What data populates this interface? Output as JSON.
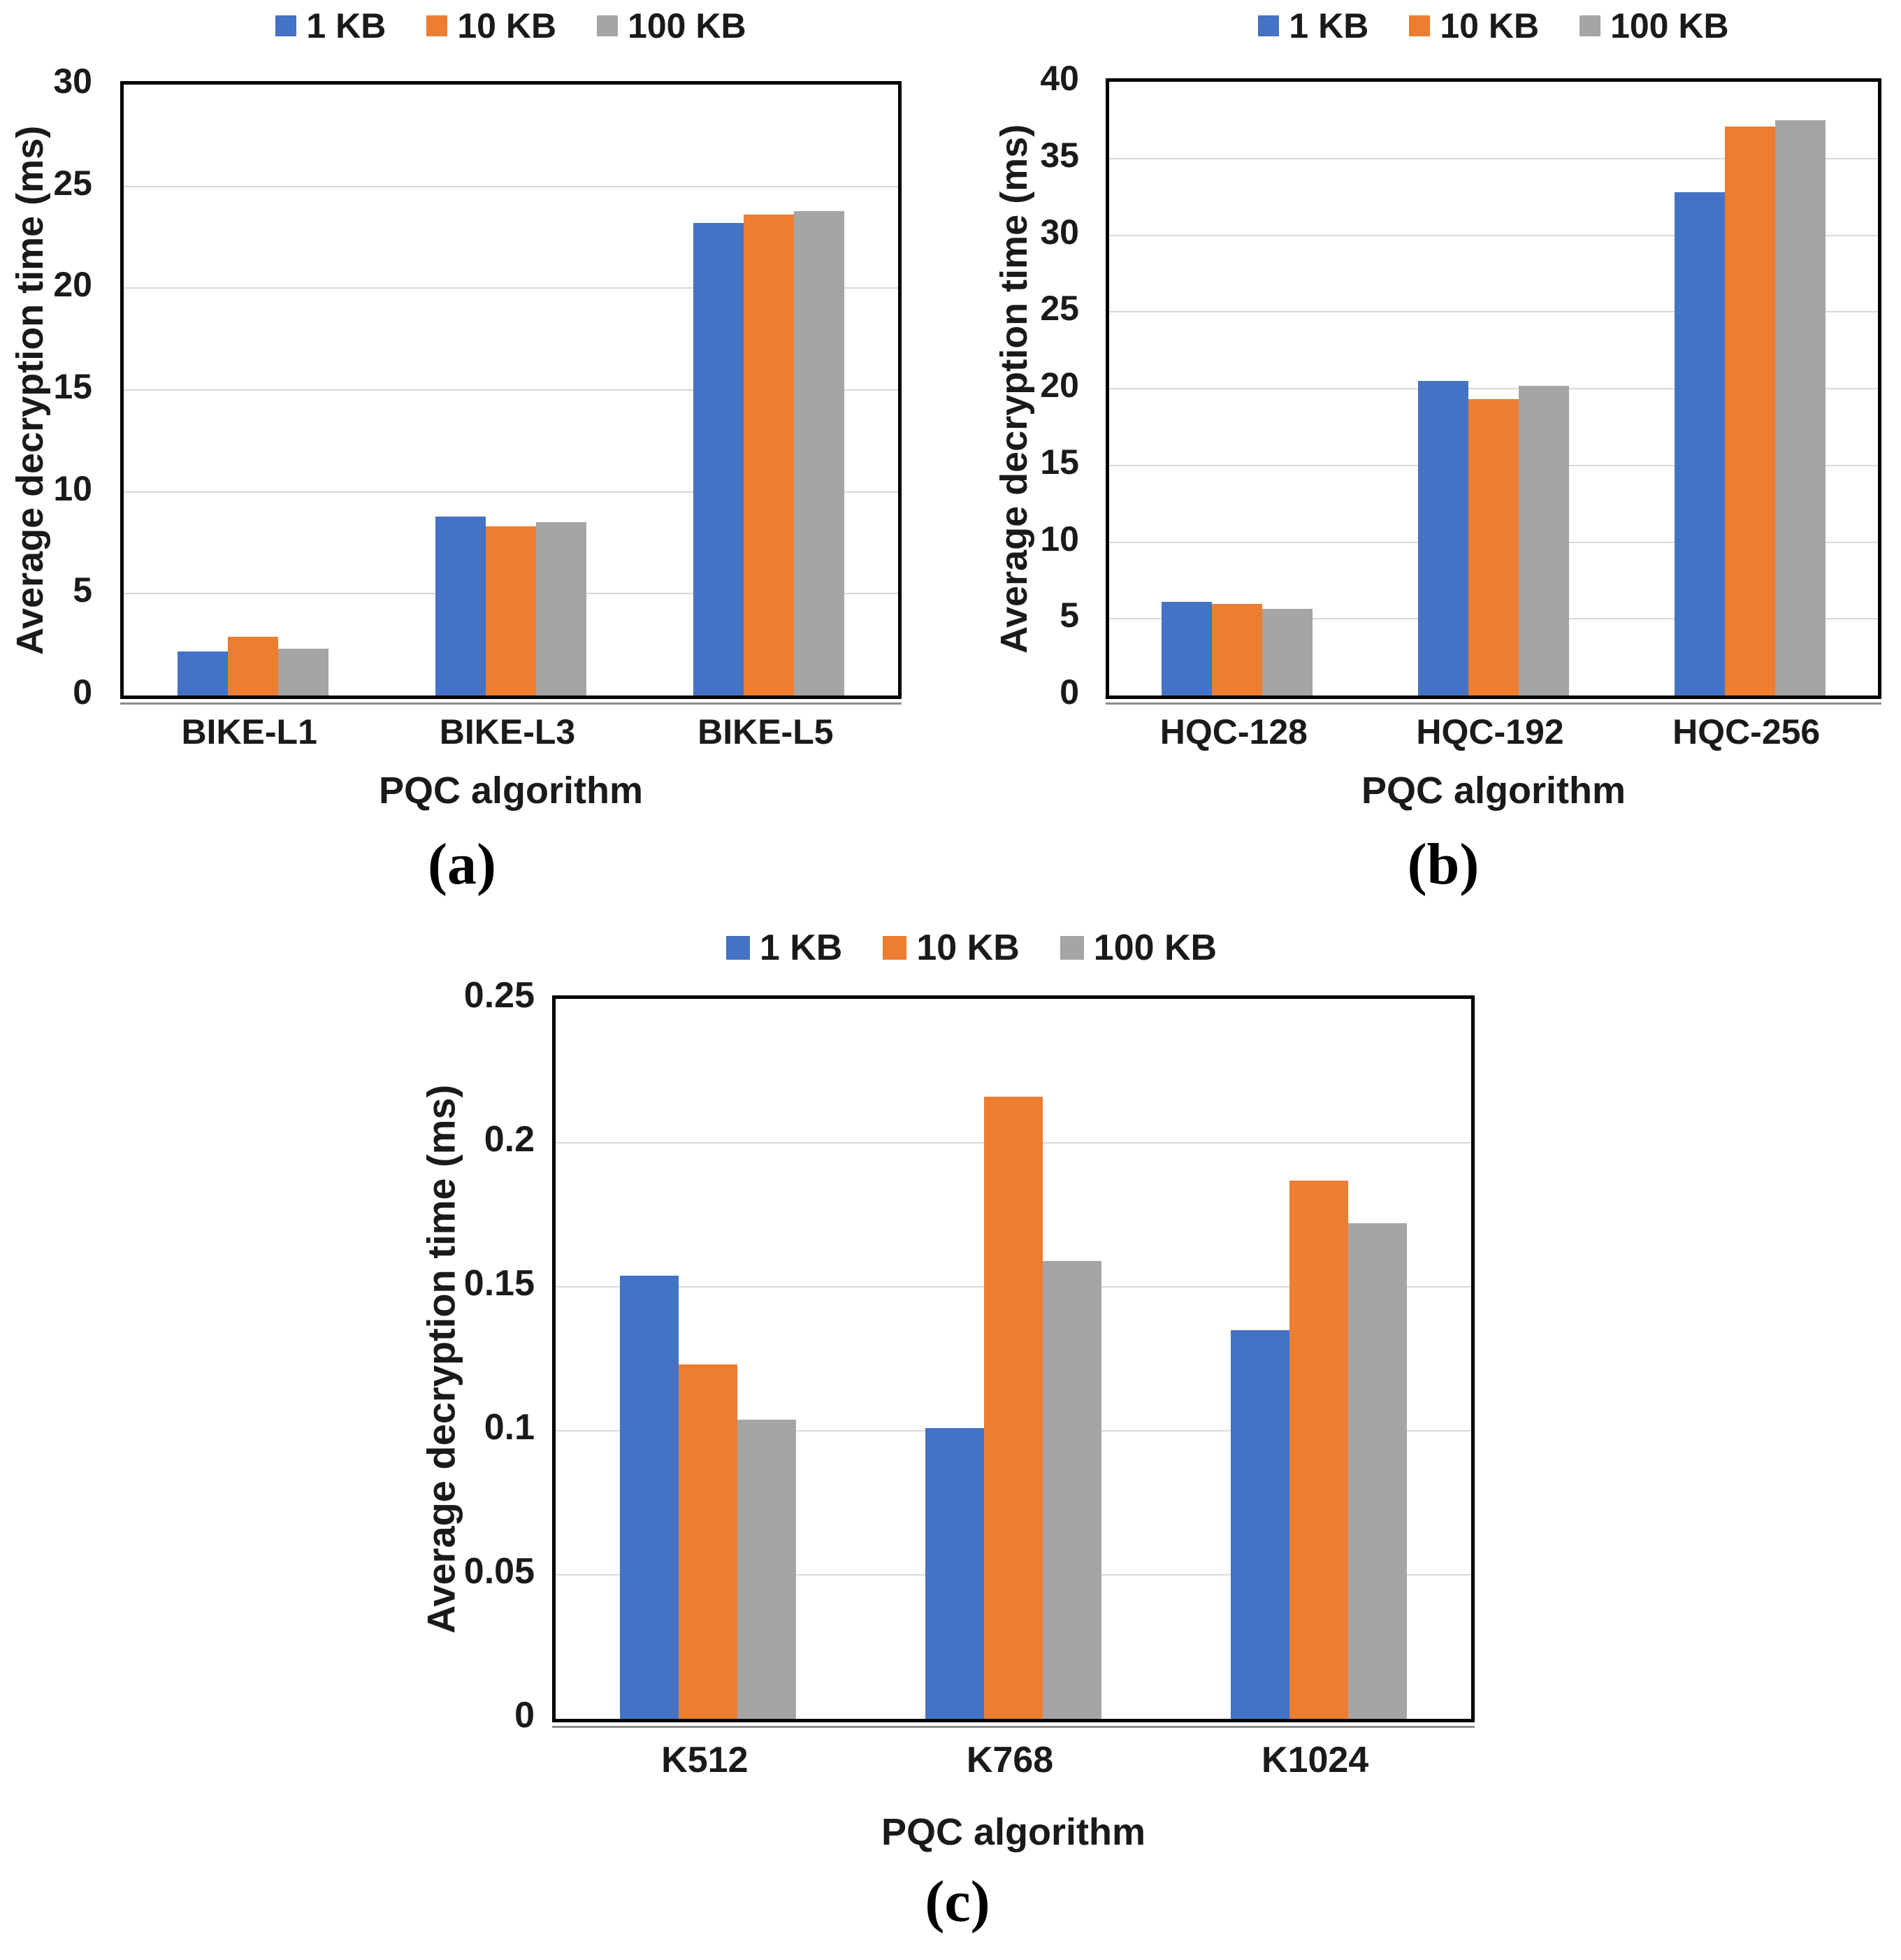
{
  "colors": {
    "series_1kb": "#4472C4",
    "series_10kb": "#ED7D31",
    "series_100kb": "#A5A5A5",
    "gridline": "#D9D9D9",
    "axis_border": "#000000"
  },
  "chart_data": [
    {
      "type": "bar",
      "caption": "(a)",
      "ylabel": "Average decryption time (ms)",
      "xlabel": "PQC algorithm",
      "ylim": [
        0,
        30
      ],
      "yticks": [
        "0",
        "5",
        "10",
        "15",
        "20",
        "25",
        "30"
      ],
      "grid": true,
      "legend_position": "top",
      "categories": [
        "BIKE-L1",
        "BIKE-L3",
        "BIKE-L5"
      ],
      "series": [
        {
          "name": "1 KB",
          "color": "#4472C4",
          "values": [
            2.15,
            8.8,
            23.2
          ]
        },
        {
          "name": "10 KB",
          "color": "#ED7D31",
          "values": [
            2.9,
            8.3,
            23.6
          ]
        },
        {
          "name": "100 KB",
          "color": "#A5A5A5",
          "values": [
            2.3,
            8.5,
            23.8
          ]
        }
      ]
    },
    {
      "type": "bar",
      "caption": "(b)",
      "ylabel": "Average decryption time (ms)",
      "xlabel": "PQC algorithm",
      "ylim": [
        0,
        40
      ],
      "yticks": [
        "0",
        "5",
        "10",
        "15",
        "20",
        "25",
        "30",
        "35",
        "40"
      ],
      "grid": true,
      "legend_position": "top",
      "categories": [
        "HQC-128",
        "HQC-192",
        "HQC-256"
      ],
      "series": [
        {
          "name": "1 KB",
          "color": "#4472C4",
          "values": [
            6.1,
            20.5,
            32.8
          ]
        },
        {
          "name": "10 KB",
          "color": "#ED7D31",
          "values": [
            5.95,
            19.3,
            37.1
          ]
        },
        {
          "name": "100 KB",
          "color": "#A5A5A5",
          "values": [
            5.65,
            20.2,
            37.5
          ]
        }
      ]
    },
    {
      "type": "bar",
      "caption": "(c)",
      "ylabel": "Average decryption time (ms)",
      "xlabel": "PQC algorithm",
      "ylim": [
        0,
        0.25
      ],
      "yticks": [
        "0",
        "0.05",
        "0.1",
        "0.15",
        "0.2",
        "0.25"
      ],
      "grid": true,
      "legend_position": "top",
      "categories": [
        "K512",
        "K768",
        "K1024"
      ],
      "series": [
        {
          "name": "1 KB",
          "color": "#4472C4",
          "values": [
            0.154,
            0.101,
            0.135
          ]
        },
        {
          "name": "10 KB",
          "color": "#ED7D31",
          "values": [
            0.123,
            0.216,
            0.187
          ]
        },
        {
          "name": "100 KB",
          "color": "#A5A5A5",
          "values": [
            0.104,
            0.159,
            0.172
          ]
        }
      ]
    }
  ]
}
